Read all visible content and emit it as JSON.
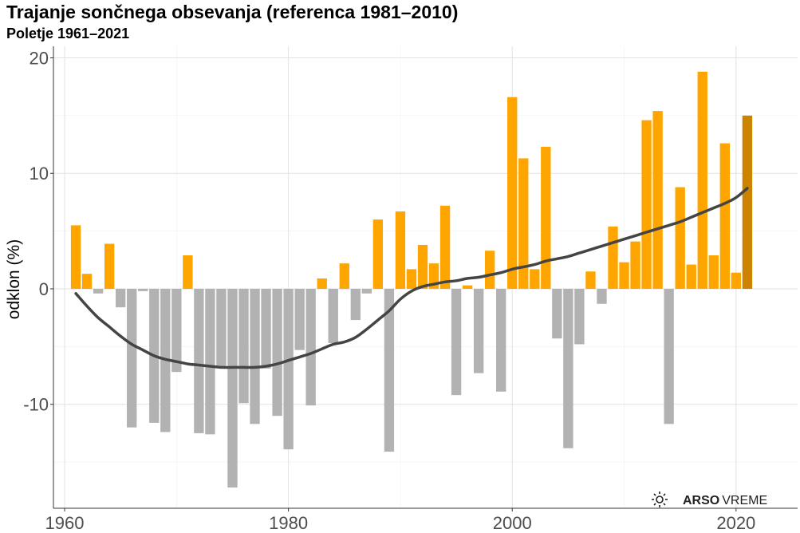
{
  "chart_data": {
    "type": "bar",
    "title": "Trajanje sončnega obsevanja (referenca 1981–2010)",
    "subtitle": "Poletje 1961–2021",
    "ylabel": "odklon (%)",
    "xlabel": "",
    "xlim": [
      1959,
      2025.5
    ],
    "ylim": [
      -19,
      21
    ],
    "x_ticks": [
      1960,
      1980,
      2000,
      2020
    ],
    "y_ticks": [
      -10,
      0,
      10,
      20
    ],
    "grid": true,
    "colors": {
      "positive": "#FFA500",
      "negative": "#B2B2B2",
      "highlight": "#CC8400",
      "trend": "#444444"
    },
    "highlight_year": 2021,
    "x": [
      1961,
      1962,
      1963,
      1964,
      1965,
      1966,
      1967,
      1968,
      1969,
      1970,
      1971,
      1972,
      1973,
      1974,
      1975,
      1976,
      1977,
      1978,
      1979,
      1980,
      1981,
      1982,
      1983,
      1984,
      1985,
      1986,
      1987,
      1988,
      1989,
      1990,
      1991,
      1992,
      1993,
      1994,
      1995,
      1996,
      1997,
      1998,
      1999,
      2000,
      2001,
      2002,
      2003,
      2004,
      2005,
      2006,
      2007,
      2008,
      2009,
      2010,
      2011,
      2012,
      2013,
      2014,
      2015,
      2016,
      2017,
      2018,
      2019,
      2020,
      2021
    ],
    "values": [
      5.5,
      1.3,
      -0.4,
      3.9,
      -1.6,
      -12.0,
      -0.2,
      -11.6,
      -12.4,
      -7.2,
      2.9,
      -12.5,
      -12.6,
      -6.8,
      -17.2,
      -9.9,
      -11.7,
      -6.9,
      -11.0,
      -13.9,
      -5.3,
      -10.1,
      0.9,
      -4.7,
      2.2,
      -2.7,
      -0.4,
      6.0,
      -14.1,
      6.7,
      1.7,
      3.8,
      2.2,
      7.2,
      -9.2,
      0.3,
      -7.3,
      3.3,
      -8.9,
      16.6,
      11.3,
      1.7,
      12.3,
      -4.3,
      -13.8,
      -4.8,
      1.5,
      -1.3,
      5.4,
      2.3,
      4.1,
      14.6,
      15.4,
      -11.7,
      8.8,
      2.1,
      18.8,
      2.9,
      12.6,
      1.4,
      15.0
    ],
    "trend": {
      "x": [
        1961,
        1962,
        1963,
        1964,
        1965,
        1966,
        1967,
        1968,
        1969,
        1970,
        1971,
        1972,
        1973,
        1974,
        1975,
        1976,
        1977,
        1978,
        1979,
        1980,
        1981,
        1982,
        1983,
        1984,
        1985,
        1986,
        1987,
        1988,
        1989,
        1990,
        1991,
        1992,
        1993,
        1994,
        1995,
        1996,
        1997,
        1998,
        1999,
        2000,
        2001,
        2002,
        2003,
        2004,
        2005,
        2006,
        2007,
        2008,
        2009,
        2010,
        2011,
        2012,
        2013,
        2014,
        2015,
        2016,
        2017,
        2018,
        2019,
        2020,
        2021
      ],
      "y": [
        -0.4,
        -1.5,
        -2.5,
        -3.3,
        -4.1,
        -4.8,
        -5.3,
        -5.8,
        -6.1,
        -6.3,
        -6.5,
        -6.6,
        -6.7,
        -6.8,
        -6.8,
        -6.8,
        -6.8,
        -6.7,
        -6.5,
        -6.2,
        -5.9,
        -5.6,
        -5.2,
        -4.8,
        -4.6,
        -4.2,
        -3.5,
        -2.7,
        -1.9,
        -0.9,
        -0.2,
        0.2,
        0.4,
        0.6,
        0.7,
        0.9,
        1.0,
        1.2,
        1.4,
        1.7,
        1.9,
        2.1,
        2.4,
        2.6,
        2.8,
        3.1,
        3.4,
        3.7,
        4.0,
        4.3,
        4.6,
        4.9,
        5.2,
        5.5,
        5.8,
        6.2,
        6.6,
        7.0,
        7.4,
        7.9,
        8.7
      ]
    }
  },
  "logo": {
    "icon": "sun-ray-icon",
    "bold": "ARSO",
    "normal": "VREME"
  }
}
